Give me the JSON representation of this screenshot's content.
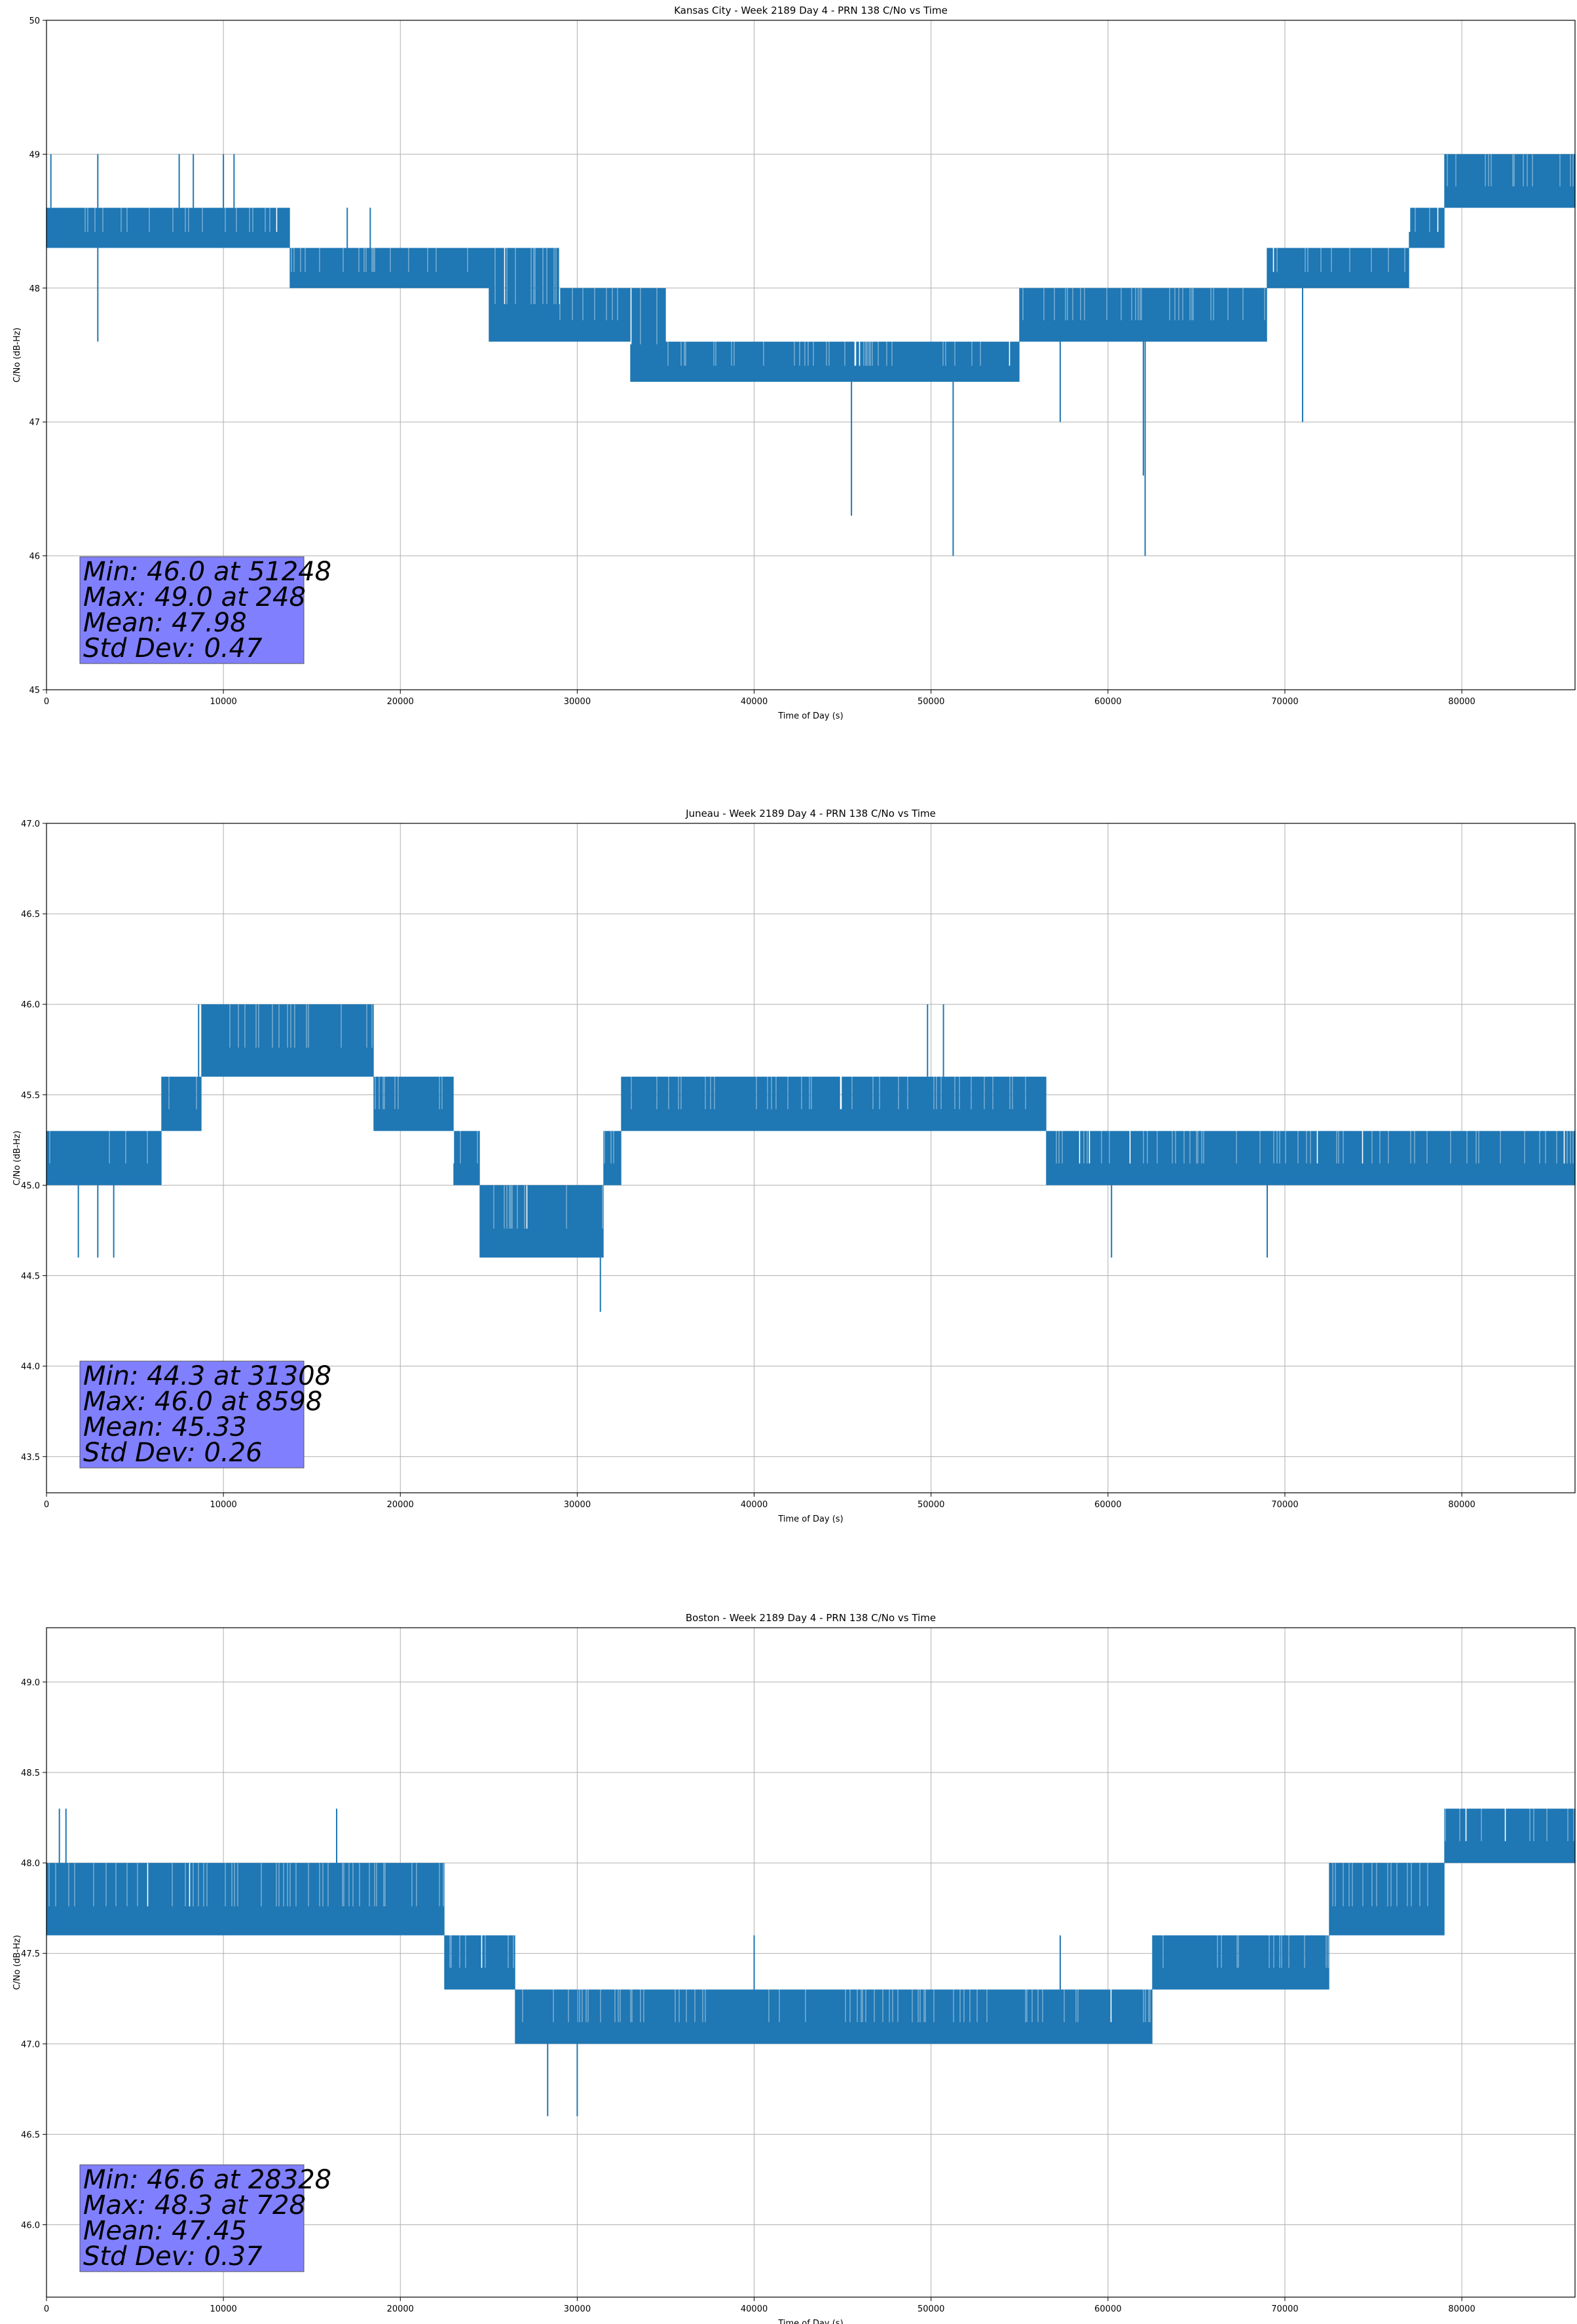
{
  "chart_data": [
    {
      "type": "line",
      "title": "Kansas City - Week 2189 Day 4 - PRN 138 C/No vs Time",
      "xlabel": "Time of Day (s)",
      "ylabel": "C/No (dB-Hz)",
      "xlim": [
        0,
        86400
      ],
      "ylim": [
        45,
        50
      ],
      "xticks": [
        0,
        10000,
        20000,
        30000,
        40000,
        50000,
        60000,
        70000,
        80000
      ],
      "xtick_labels": [
        "0",
        "10000",
        "20000",
        "30000",
        "40000",
        "50000",
        "60000",
        "70000",
        "80000"
      ],
      "yticks": [
        45,
        46,
        47,
        48,
        49,
        50
      ],
      "ytick_labels": [
        "45",
        "46",
        "47",
        "48",
        "49",
        "50"
      ],
      "grid": true,
      "series_color": "#1f77b4",
      "series": [
        {
          "x": [
            0,
            2000,
            4000,
            6000,
            8000,
            10000,
            12000,
            13500,
            14000,
            16000,
            18000,
            20000,
            22000,
            24000,
            26000,
            28000,
            30000,
            32000,
            34000,
            36000,
            38000,
            40000,
            42000,
            44000,
            46000,
            48000,
            50000,
            52000,
            54000,
            56000,
            58000,
            60000,
            62000,
            64000,
            66000,
            68000,
            70000,
            72000,
            74000,
            76000,
            78000,
            80000,
            82000,
            84000,
            86400
          ],
          "y_low": [
            48.3,
            48.3,
            48.3,
            48.3,
            48.3,
            48.3,
            48.3,
            48.3,
            48.0,
            48.0,
            48.0,
            48.0,
            48.0,
            48.0,
            47.6,
            47.6,
            47.6,
            47.6,
            47.3,
            47.3,
            47.3,
            47.3,
            47.3,
            47.3,
            47.3,
            47.3,
            47.3,
            47.3,
            47.3,
            47.6,
            47.6,
            47.6,
            47.6,
            47.6,
            47.6,
            47.6,
            48.0,
            48.0,
            48.0,
            48.0,
            48.3,
            48.6,
            48.6,
            48.6,
            48.6
          ],
          "y_high": [
            48.6,
            48.6,
            48.6,
            48.6,
            48.6,
            48.6,
            48.6,
            48.6,
            48.3,
            48.3,
            48.3,
            48.3,
            48.3,
            48.3,
            48.3,
            48.3,
            48.0,
            48.0,
            48.0,
            47.6,
            47.6,
            47.6,
            47.6,
            47.6,
            47.6,
            47.6,
            47.6,
            47.6,
            47.6,
            48.0,
            48.0,
            48.0,
            48.0,
            48.0,
            48.0,
            48.0,
            48.3,
            48.3,
            48.3,
            48.3,
            48.6,
            49.0,
            49.0,
            49.0,
            49.0
          ],
          "spikes": [
            [
              248,
              49.0
            ],
            [
              2900,
              49.0
            ],
            [
              2900,
              47.6
            ],
            [
              7500,
              49.0
            ],
            [
              8300,
              49.0
            ],
            [
              10000,
              49.0
            ],
            [
              10600,
              49.0
            ],
            [
              17000,
              48.6
            ],
            [
              18300,
              48.6
            ],
            [
              45500,
              46.3
            ],
            [
              51248,
              46.0
            ],
            [
              62100,
              46.0
            ],
            [
              62000,
              46.6
            ],
            [
              57300,
              47.0
            ],
            [
              71000,
              47.0
            ]
          ]
        }
      ],
      "stats": [
        "Min: 46.0 at 51248",
        "Max: 49.0 at 248",
        "Mean: 47.98",
        "Std Dev: 0.47"
      ]
    },
    {
      "type": "line",
      "title": "Juneau - Week 2189 Day 4 - PRN 138 C/No vs Time",
      "xlabel": "Time of Day (s)",
      "ylabel": "C/No (dB-Hz)",
      "xlim": [
        0,
        86400
      ],
      "ylim": [
        43.3,
        47.0
      ],
      "xticks": [
        0,
        10000,
        20000,
        30000,
        40000,
        50000,
        60000,
        70000,
        80000
      ],
      "xtick_labels": [
        "0",
        "10000",
        "20000",
        "30000",
        "40000",
        "50000",
        "60000",
        "70000",
        "80000"
      ],
      "yticks": [
        43.5,
        44.0,
        44.5,
        45.0,
        45.5,
        46.0,
        46.5,
        47.0
      ],
      "ytick_labels": [
        "43.5",
        "44.0",
        "44.5",
        "45.0",
        "45.5",
        "46.0",
        "46.5",
        "47.0"
      ],
      "grid": true,
      "series_color": "#1f77b4",
      "series": [
        {
          "x": [
            0,
            2000,
            4000,
            6000,
            7000,
            8000,
            9500,
            12000,
            14000,
            16000,
            18000,
            19000,
            20000,
            22000,
            24000,
            25000,
            26000,
            28000,
            30000,
            31000,
            32000,
            33000,
            34000,
            36000,
            38000,
            40000,
            42000,
            44000,
            46000,
            48000,
            50000,
            52000,
            54000,
            56000,
            57000,
            58000,
            60000,
            62000,
            64000,
            66000,
            68000,
            70000,
            72000,
            74000,
            76000,
            78000,
            80000,
            82000,
            84000,
            86400
          ],
          "y_low": [
            45.0,
            45.0,
            45.0,
            45.0,
            45.3,
            45.3,
            45.6,
            45.6,
            45.6,
            45.6,
            45.6,
            45.3,
            45.3,
            45.3,
            45.0,
            44.6,
            44.6,
            44.6,
            44.6,
            44.6,
            45.0,
            45.3,
            45.3,
            45.3,
            45.3,
            45.3,
            45.3,
            45.3,
            45.3,
            45.3,
            45.3,
            45.3,
            45.3,
            45.3,
            45.0,
            45.0,
            45.0,
            45.0,
            45.0,
            45.0,
            45.0,
            45.0,
            45.0,
            45.0,
            45.0,
            45.0,
            45.0,
            45.0,
            45.0,
            45.0
          ],
          "y_high": [
            45.3,
            45.3,
            45.3,
            45.3,
            45.6,
            45.6,
            46.0,
            46.0,
            46.0,
            46.0,
            46.0,
            45.6,
            45.6,
            45.6,
            45.3,
            45.0,
            45.0,
            45.0,
            45.0,
            45.0,
            45.3,
            45.6,
            45.6,
            45.6,
            45.6,
            45.6,
            45.6,
            45.6,
            45.6,
            45.6,
            45.6,
            45.6,
            45.6,
            45.6,
            45.3,
            45.3,
            45.3,
            45.3,
            45.3,
            45.3,
            45.3,
            45.3,
            45.3,
            45.3,
            45.3,
            45.3,
            45.3,
            45.3,
            45.3,
            45.3
          ],
          "spikes": [
            [
              1800,
              44.6
            ],
            [
              2900,
              44.6
            ],
            [
              3800,
              44.6
            ],
            [
              8598,
              46.0
            ],
            [
              31308,
              44.3
            ],
            [
              49800,
              46.0
            ],
            [
              50700,
              46.0
            ],
            [
              60200,
              44.6
            ],
            [
              69000,
              44.6
            ]
          ]
        }
      ],
      "stats": [
        "Min: 44.3 at 31308",
        "Max: 46.0 at 8598",
        "Mean: 45.33",
        "Std Dev: 0.26"
      ]
    },
    {
      "type": "line",
      "title": "Boston - Week 2189 Day 4 - PRN 138 C/No vs Time",
      "xlabel": "Time of Day (s)",
      "ylabel": "C/No (dB-Hz)",
      "xlim": [
        0,
        86400
      ],
      "ylim": [
        45.6,
        49.3
      ],
      "xticks": [
        0,
        10000,
        20000,
        30000,
        40000,
        50000,
        60000,
        70000,
        80000
      ],
      "xtick_labels": [
        "0",
        "10000",
        "20000",
        "30000",
        "40000",
        "50000",
        "60000",
        "70000",
        "80000"
      ],
      "yticks": [
        46.0,
        46.5,
        47.0,
        47.5,
        48.0,
        48.5,
        49.0
      ],
      "ytick_labels": [
        "46.0",
        "46.5",
        "47.0",
        "47.5",
        "48.0",
        "48.5",
        "49.0"
      ],
      "grid": true,
      "series_color": "#1f77b4",
      "series": [
        {
          "x": [
            0,
            2000,
            4000,
            6000,
            8000,
            10000,
            12000,
            14000,
            16000,
            18000,
            20000,
            22000,
            23000,
            24000,
            26000,
            27000,
            28000,
            30000,
            32000,
            34000,
            36000,
            38000,
            40000,
            42000,
            44000,
            46000,
            48000,
            50000,
            52000,
            54000,
            56000,
            58000,
            60000,
            62000,
            63000,
            64000,
            66000,
            68000,
            70000,
            72000,
            73000,
            74000,
            76000,
            78000,
            80000,
            82000,
            84000,
            86400
          ],
          "y_low": [
            47.6,
            47.6,
            47.6,
            47.6,
            47.6,
            47.6,
            47.6,
            47.6,
            47.6,
            47.6,
            47.6,
            47.6,
            47.3,
            47.3,
            47.3,
            47.0,
            47.0,
            47.0,
            47.0,
            47.0,
            47.0,
            47.0,
            47.0,
            47.0,
            47.0,
            47.0,
            47.0,
            47.0,
            47.0,
            47.0,
            47.0,
            47.0,
            47.0,
            47.0,
            47.3,
            47.3,
            47.3,
            47.3,
            47.3,
            47.3,
            47.6,
            47.6,
            47.6,
            47.6,
            48.0,
            48.0,
            48.0,
            48.0
          ],
          "y_high": [
            48.0,
            48.0,
            48.0,
            48.0,
            48.0,
            48.0,
            48.0,
            48.0,
            48.0,
            48.0,
            48.0,
            48.0,
            47.6,
            47.6,
            47.6,
            47.3,
            47.3,
            47.3,
            47.3,
            47.3,
            47.3,
            47.3,
            47.3,
            47.3,
            47.3,
            47.3,
            47.3,
            47.3,
            47.3,
            47.3,
            47.3,
            47.3,
            47.3,
            47.3,
            47.6,
            47.6,
            47.6,
            47.6,
            47.6,
            47.6,
            48.0,
            48.0,
            48.0,
            48.0,
            48.3,
            48.3,
            48.3,
            48.3
          ],
          "spikes": [
            [
              728,
              48.3
            ],
            [
              1100,
              48.3
            ],
            [
              16400,
              48.3
            ],
            [
              28328,
              46.6
            ],
            [
              30000,
              46.6
            ],
            [
              40000,
              47.6
            ],
            [
              57300,
              47.6
            ]
          ]
        }
      ],
      "stats": [
        "Min: 46.6 at 28328",
        "Max: 48.3 at 728",
        "Mean: 47.45",
        "Std Dev: 0.37"
      ]
    }
  ]
}
